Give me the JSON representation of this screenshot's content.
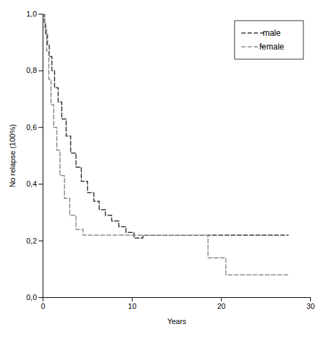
{
  "chart_data": {
    "type": "step",
    "x_label": "Years",
    "y_label": "No relapse (100%)",
    "series": [
      {
        "name": "male",
        "color": "#333333",
        "line_style": "dashed",
        "x": [
          0,
          0.15,
          0.3,
          0.5,
          0.7,
          1.0,
          1.3,
          1.7,
          2.1,
          2.6,
          3.1,
          3.7,
          4.3,
          5.0,
          5.7,
          6.3,
          7.0,
          7.7,
          8.5,
          9.3,
          10.2,
          11.2,
          12.5,
          14.0,
          15.5,
          18.0,
          27.5
        ],
        "values": [
          1.0,
          0.97,
          0.93,
          0.89,
          0.85,
          0.8,
          0.74,
          0.69,
          0.63,
          0.57,
          0.51,
          0.46,
          0.41,
          0.37,
          0.34,
          0.31,
          0.29,
          0.27,
          0.25,
          0.23,
          0.21,
          0.22,
          0.22,
          0.22,
          0.22,
          0.22,
          0.22
        ]
      },
      {
        "name": "female",
        "color": "#888888",
        "line_style": "dashed",
        "x": [
          0,
          0.2,
          0.4,
          0.65,
          0.9,
          1.2,
          1.55,
          1.9,
          2.4,
          3.0,
          3.7,
          4.5,
          5.3,
          6.2,
          7.2,
          8.5,
          10.5,
          14.0,
          18.5,
          20.5,
          27.5
        ],
        "values": [
          1.0,
          0.95,
          0.87,
          0.77,
          0.68,
          0.6,
          0.52,
          0.43,
          0.35,
          0.29,
          0.24,
          0.22,
          0.22,
          0.22,
          0.22,
          0.22,
          0.22,
          0.22,
          0.14,
          0.08,
          0.08
        ]
      }
    ],
    "xlim": [
      0,
      30
    ],
    "xticks": [
      0,
      10,
      20,
      30
    ],
    "ylim": [
      0.0,
      1.0
    ],
    "yticks": [
      {
        "value": 0.0,
        "label": "0,0"
      },
      {
        "value": 0.2,
        "label": "0,2"
      },
      {
        "value": 0.4,
        "label": "0,4"
      },
      {
        "value": 0.6,
        "label": "0,6"
      },
      {
        "value": 0.8,
        "label": "0,8"
      },
      {
        "value": 1.0,
        "label": "1,0"
      }
    ],
    "grid": false,
    "legend": "upper right"
  }
}
